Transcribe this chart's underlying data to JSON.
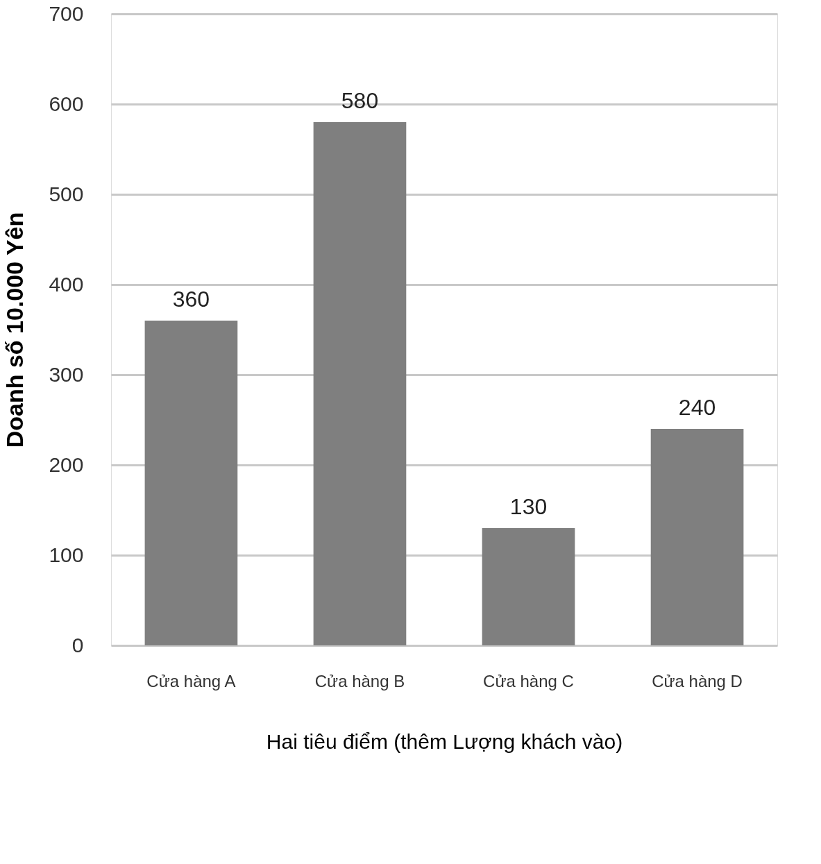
{
  "chart_data": {
    "type": "bar",
    "categories": [
      "Cửa hàng A",
      "Cửa hàng B",
      "Cửa hàng C",
      "Cửa hàng D"
    ],
    "values": [
      360,
      580,
      130,
      240
    ],
    "color": "#7f7f7f",
    "xlabel": "Hai tiêu điểm (thêm Lượng khách vào)",
    "ylabel": "Doanh số 10.000 Yên",
    "ylim": [
      0,
      700
    ],
    "yticks": [
      0,
      100,
      200,
      300,
      400,
      500,
      600,
      700
    ],
    "grid": "y",
    "data_labels": true
  }
}
